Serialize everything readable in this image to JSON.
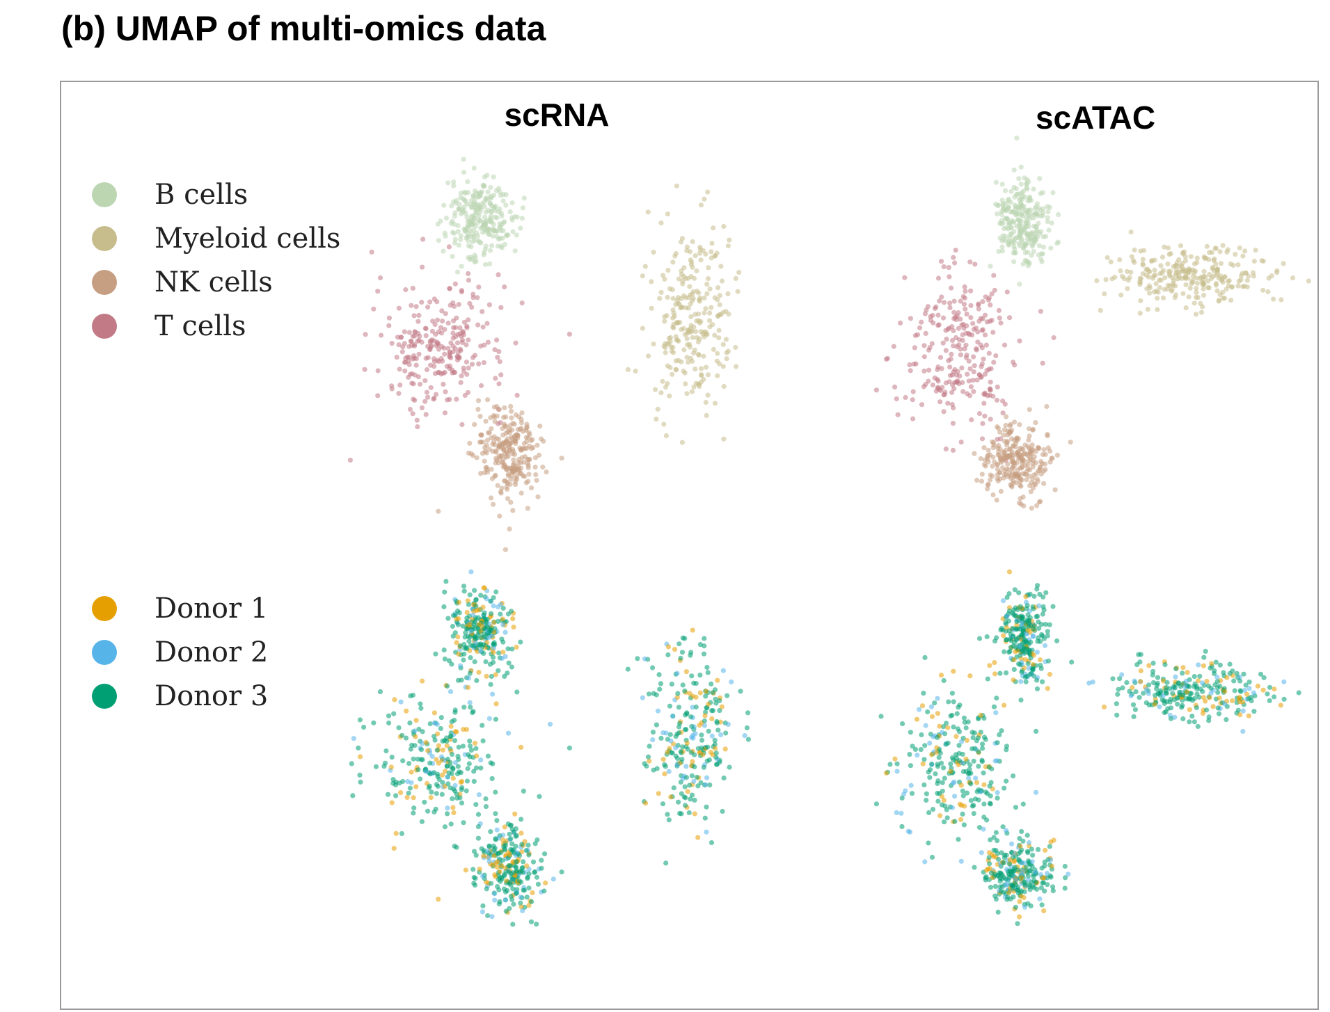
{
  "figure": {
    "title": "(b) UMAP of multi-omics data"
  },
  "chart_data": {
    "type": "scatter",
    "columns": [
      "scRNA",
      "scATAC"
    ],
    "rows": [
      {
        "color_by": "cell_type",
        "legend": [
          "B cells",
          "Myeloid cells",
          "NK cells",
          "T cells"
        ]
      },
      {
        "color_by": "donor",
        "legend": [
          "Donor 1",
          "Donor 2",
          "Donor 3"
        ]
      }
    ],
    "axes": "hidden",
    "grid": false,
    "legend_placement": "left",
    "colors": {
      "B cells": "#bcd6b2",
      "Myeloid cells": "#c7bd8c",
      "NK cells": "#c69e82",
      "T cells": "#c37a87",
      "Donor 1": "#e69f00",
      "Donor 2": "#56b4e9",
      "Donor 3": "#009e73"
    },
    "clusters": {
      "scRNA": {
        "T cells": {
          "center": [
            -4.2,
            0.3
          ],
          "spread": [
            1.4,
            1.1
          ]
        },
        "NK cells": {
          "center": [
            -2.6,
            -1.7
          ],
          "spread": [
            0.7,
            0.8
          ]
        },
        "B cells": {
          "center": [
            -3.3,
            2.7
          ],
          "spread": [
            0.7,
            0.7
          ]
        },
        "Myeloid cells": {
          "center": [
            1.6,
            0.8
          ],
          "spread": [
            0.9,
            1.5
          ]
        }
      },
      "scATAC": {
        "T cells": {
          "center": [
            -1.0,
            0.2
          ],
          "spread": [
            1.0,
            1.3
          ]
        },
        "NK cells": {
          "center": [
            0.1,
            -1.8
          ],
          "spread": [
            0.6,
            0.6
          ]
        },
        "B cells": {
          "center": [
            0.2,
            2.6
          ],
          "spread": [
            0.45,
            0.75
          ]
        },
        "Myeloid cells": {
          "center": [
            3.5,
            1.6
          ],
          "spread": [
            1.4,
            0.5
          ]
        }
      }
    },
    "donor_mix": {
      "Donor 1": 0.2,
      "Donor 2": 0.15,
      "Donor 3": 0.65
    }
  }
}
